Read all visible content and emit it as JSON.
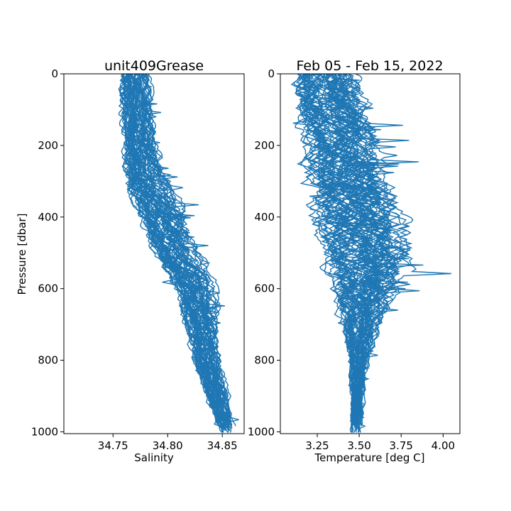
{
  "chart_data": [
    {
      "type": "line",
      "title": "unit409Grease",
      "xlabel": "Salinity",
      "ylabel": "Pressure [dbar]",
      "xlim": [
        34.705,
        34.87
      ],
      "ylim": [
        1005,
        0
      ],
      "y_inverted": true,
      "xticks": [
        "34.75",
        "34.80",
        "34.85"
      ],
      "xtick_values": [
        34.75,
        34.8,
        34.85
      ],
      "yticks": [
        "0",
        "200",
        "400",
        "600",
        "800",
        "1000"
      ],
      "ytick_values": [
        0,
        200,
        400,
        600,
        800,
        1000
      ],
      "grid": false,
      "line_color": "#1f77b4",
      "profile_count": 60,
      "mean_profile": {
        "pressure": [
          0,
          100,
          200,
          300,
          400,
          500,
          600,
          700,
          800,
          900,
          1000
        ],
        "value": [
          34.77,
          34.772,
          34.774,
          34.78,
          34.795,
          34.805,
          34.825,
          34.83,
          34.835,
          34.845,
          34.855
        ]
      },
      "spread": [
        0.012,
        0.012,
        0.012,
        0.016,
        0.018,
        0.018,
        0.015,
        0.012,
        0.01,
        0.008,
        0.006
      ]
    },
    {
      "type": "line",
      "title": "Feb 05 - Feb 15, 2022",
      "xlabel": "Temperature [deg C]",
      "ylabel": "",
      "xlim": [
        3.03,
        4.1
      ],
      "ylim": [
        1005,
        0
      ],
      "y_inverted": true,
      "xticks": [
        "3.25",
        "3.50",
        "3.75",
        "4.00"
      ],
      "xtick_values": [
        3.25,
        3.5,
        3.75,
        4.0
      ],
      "yticks": [
        "0",
        "200",
        "400",
        "600",
        "800",
        "1000"
      ],
      "ytick_values": [
        0,
        200,
        400,
        600,
        800,
        1000
      ],
      "grid": false,
      "line_color": "#1f77b4",
      "profile_count": 60,
      "mean_profile": {
        "pressure": [
          0,
          100,
          200,
          300,
          400,
          500,
          600,
          700,
          800,
          900,
          1000
        ],
        "value": [
          3.3,
          3.35,
          3.4,
          3.45,
          3.52,
          3.55,
          3.55,
          3.52,
          3.5,
          3.49,
          3.48
        ]
      },
      "spread": [
        0.15,
        0.18,
        0.18,
        0.2,
        0.22,
        0.22,
        0.16,
        0.1,
        0.05,
        0.03,
        0.03
      ]
    }
  ]
}
